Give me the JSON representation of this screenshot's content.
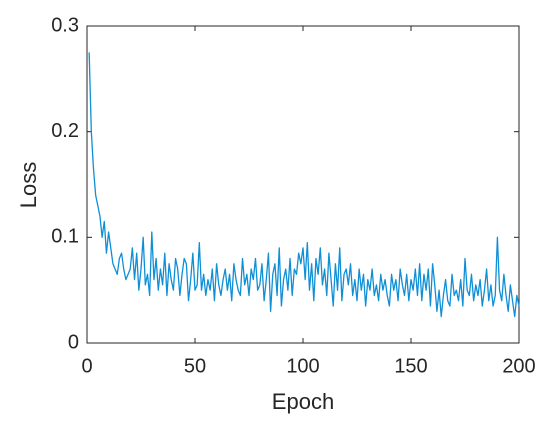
{
  "chart_data": {
    "type": "line",
    "xlabel": "Epoch",
    "ylabel": "Loss",
    "color": "#0e8fd6",
    "xlim": [
      0,
      200
    ],
    "xticks": [
      0,
      50,
      100,
      150,
      200
    ],
    "ylim": [
      0,
      0.3
    ],
    "yticks": [
      0,
      0.1,
      0.2,
      0.3
    ],
    "x": [
      1,
      2,
      3,
      4,
      5,
      6,
      7,
      8,
      9,
      10,
      11,
      12,
      13,
      14,
      15,
      16,
      17,
      18,
      19,
      20,
      21,
      22,
      23,
      24,
      25,
      26,
      27,
      28,
      29,
      30,
      31,
      32,
      33,
      34,
      35,
      36,
      37,
      38,
      39,
      40,
      41,
      42,
      43,
      44,
      45,
      46,
      47,
      48,
      49,
      50,
      51,
      52,
      53,
      54,
      55,
      56,
      57,
      58,
      59,
      60,
      61,
      62,
      63,
      64,
      65,
      66,
      67,
      68,
      69,
      70,
      71,
      72,
      73,
      74,
      75,
      76,
      77,
      78,
      79,
      80,
      81,
      82,
      83,
      84,
      85,
      86,
      87,
      88,
      89,
      90,
      91,
      92,
      93,
      94,
      95,
      96,
      97,
      98,
      99,
      100,
      101,
      102,
      103,
      104,
      105,
      106,
      107,
      108,
      109,
      110,
      111,
      112,
      113,
      114,
      115,
      116,
      117,
      118,
      119,
      120,
      121,
      122,
      123,
      124,
      125,
      126,
      127,
      128,
      129,
      130,
      131,
      132,
      133,
      134,
      135,
      136,
      137,
      138,
      139,
      140,
      141,
      142,
      143,
      144,
      145,
      146,
      147,
      148,
      149,
      150,
      151,
      152,
      153,
      154,
      155,
      156,
      157,
      158,
      159,
      160,
      161,
      162,
      163,
      164,
      165,
      166,
      167,
      168,
      169,
      170,
      171,
      172,
      173,
      174,
      175,
      176,
      177,
      178,
      179,
      180,
      181,
      182,
      183,
      184,
      185,
      186,
      187,
      188,
      189,
      190,
      191,
      192,
      193,
      194,
      195,
      196,
      197,
      198,
      199,
      200
    ],
    "values": [
      0.275,
      0.2,
      0.165,
      0.14,
      0.13,
      0.12,
      0.1,
      0.115,
      0.085,
      0.105,
      0.09,
      0.075,
      0.07,
      0.065,
      0.08,
      0.085,
      0.07,
      0.06,
      0.065,
      0.07,
      0.09,
      0.06,
      0.085,
      0.05,
      0.07,
      0.1,
      0.055,
      0.065,
      0.045,
      0.105,
      0.06,
      0.08,
      0.05,
      0.07,
      0.055,
      0.085,
      0.045,
      0.075,
      0.06,
      0.05,
      0.08,
      0.07,
      0.045,
      0.065,
      0.08,
      0.075,
      0.04,
      0.06,
      0.085,
      0.05,
      0.055,
      0.095,
      0.05,
      0.065,
      0.045,
      0.06,
      0.05,
      0.07,
      0.04,
      0.075,
      0.055,
      0.045,
      0.06,
      0.07,
      0.05,
      0.065,
      0.04,
      0.075,
      0.06,
      0.05,
      0.045,
      0.08,
      0.055,
      0.065,
      0.045,
      0.07,
      0.06,
      0.08,
      0.05,
      0.055,
      0.075,
      0.04,
      0.06,
      0.085,
      0.03,
      0.065,
      0.075,
      0.045,
      0.09,
      0.035,
      0.06,
      0.07,
      0.05,
      0.08,
      0.045,
      0.07,
      0.065,
      0.085,
      0.075,
      0.09,
      0.06,
      0.095,
      0.05,
      0.075,
      0.04,
      0.08,
      0.065,
      0.09,
      0.055,
      0.07,
      0.045,
      0.085,
      0.06,
      0.035,
      0.075,
      0.05,
      0.09,
      0.04,
      0.065,
      0.07,
      0.055,
      0.075,
      0.045,
      0.06,
      0.04,
      0.07,
      0.05,
      0.065,
      0.035,
      0.06,
      0.05,
      0.07,
      0.045,
      0.055,
      0.04,
      0.065,
      0.05,
      0.06,
      0.045,
      0.035,
      0.065,
      0.05,
      0.06,
      0.04,
      0.07,
      0.055,
      0.045,
      0.065,
      0.04,
      0.06,
      0.05,
      0.07,
      0.045,
      0.075,
      0.04,
      0.065,
      0.05,
      0.07,
      0.035,
      0.075,
      0.055,
      0.03,
      0.05,
      0.025,
      0.045,
      0.06,
      0.04,
      0.035,
      0.065,
      0.045,
      0.05,
      0.04,
      0.06,
      0.035,
      0.08,
      0.05,
      0.045,
      0.065,
      0.04,
      0.055,
      0.045,
      0.06,
      0.035,
      0.05,
      0.07,
      0.04,
      0.055,
      0.035,
      0.045,
      0.1,
      0.05,
      0.04,
      0.065,
      0.045,
      0.03,
      0.055,
      0.04,
      0.025,
      0.045,
      0.035
    ]
  }
}
